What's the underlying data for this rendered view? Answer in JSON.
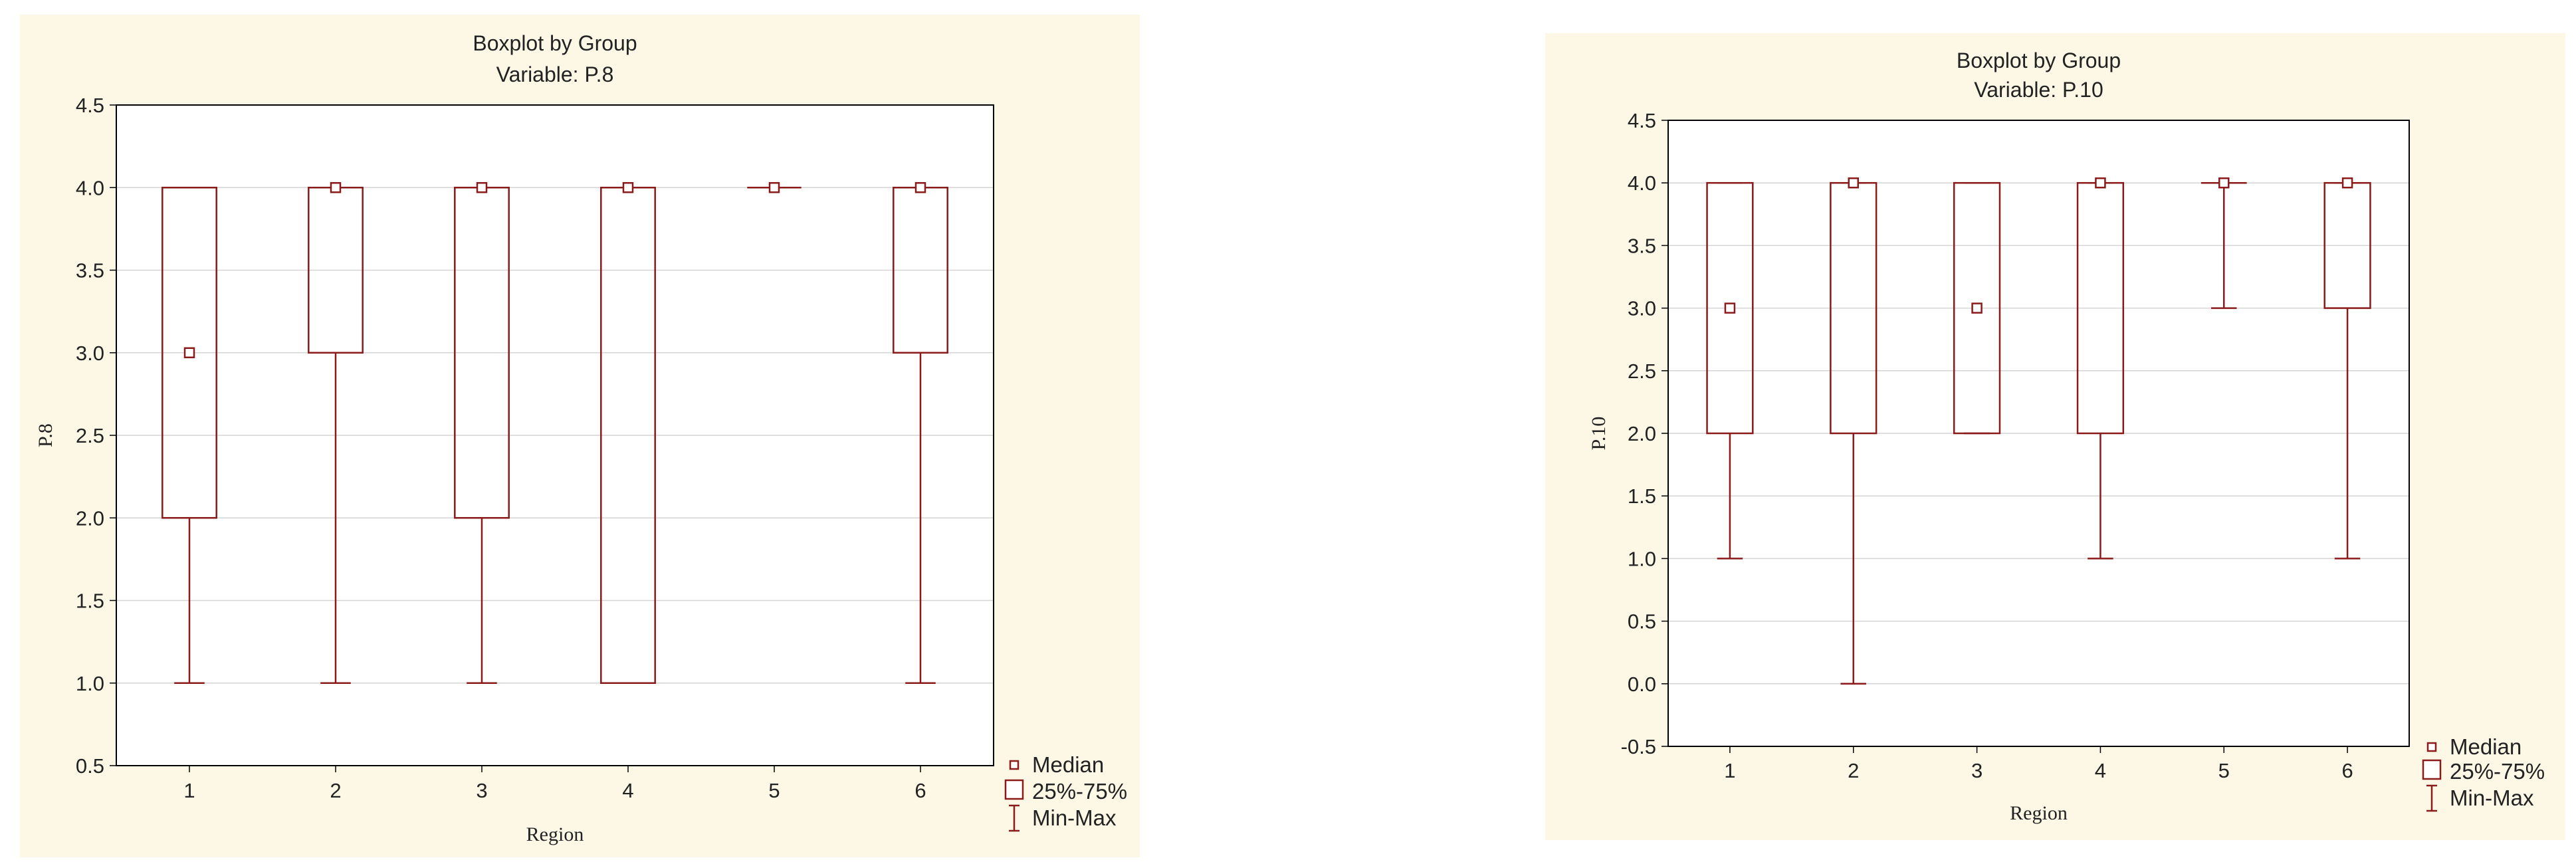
{
  "colors": {
    "box": "#8b1a1a",
    "panel_bg": "#fdf7e6",
    "plot_bg": "#ffffff",
    "grid": "#d4d4d4"
  },
  "chart_data": [
    {
      "type": "box",
      "title": "Boxplot by Group",
      "subtitle": "Variable: P.8",
      "xlabel": "Region",
      "ylabel": "P.8",
      "categories": [
        "1",
        "2",
        "3",
        "4",
        "5",
        "6"
      ],
      "ylim": [
        0.5,
        4.5
      ],
      "yticks": [
        "0.5",
        "1.0",
        "1.5",
        "2.0",
        "2.5",
        "3.0",
        "3.5",
        "4.0",
        "4.5"
      ],
      "grid": true,
      "legend_position": "bottom-right outside",
      "boxes": [
        {
          "category": "1",
          "min": 1.0,
          "q1": 2.0,
          "median": 3.0,
          "q3": 4.0,
          "max": 4.0
        },
        {
          "category": "2",
          "min": 1.0,
          "q1": 3.0,
          "median": 4.0,
          "q3": 4.0,
          "max": 4.0
        },
        {
          "category": "3",
          "min": 1.0,
          "q1": 2.0,
          "median": 4.0,
          "q3": 4.0,
          "max": 4.0
        },
        {
          "category": "4",
          "min": 1.0,
          "q1": 1.0,
          "median": 4.0,
          "q3": 4.0,
          "max": 4.0
        },
        {
          "category": "5",
          "min": 4.0,
          "q1": 4.0,
          "median": 4.0,
          "q3": 4.0,
          "max": 4.0
        },
        {
          "category": "6",
          "min": 1.0,
          "q1": 3.0,
          "median": 4.0,
          "q3": 4.0,
          "max": 4.0
        }
      ],
      "legend": [
        "Median",
        "25%-75%",
        "Min-Max"
      ]
    },
    {
      "type": "box",
      "title": "Boxplot by Group",
      "subtitle": "Variable: P.10",
      "xlabel": "Region",
      "ylabel": "P.10",
      "categories": [
        "1",
        "2",
        "3",
        "4",
        "5",
        "6"
      ],
      "ylim": [
        -0.5,
        4.5
      ],
      "yticks": [
        "-0.5",
        "0.0",
        "0.5",
        "1.0",
        "1.5",
        "2.0",
        "2.5",
        "3.0",
        "3.5",
        "4.0",
        "4.5"
      ],
      "grid": true,
      "legend_position": "bottom-right outside",
      "boxes": [
        {
          "category": "1",
          "min": 1.0,
          "q1": 2.0,
          "median": 3.0,
          "q3": 4.0,
          "max": 4.0
        },
        {
          "category": "2",
          "min": 0.0,
          "q1": 2.0,
          "median": 4.0,
          "q3": 4.0,
          "max": 4.0
        },
        {
          "category": "3",
          "min": 2.0,
          "q1": 2.0,
          "median": 3.0,
          "q3": 4.0,
          "max": 4.0
        },
        {
          "category": "4",
          "min": 1.0,
          "q1": 2.0,
          "median": 4.0,
          "q3": 4.0,
          "max": 4.0
        },
        {
          "category": "5",
          "min": 3.0,
          "q1": 4.0,
          "median": 4.0,
          "q3": 4.0,
          "max": 4.0
        },
        {
          "category": "6",
          "min": 1.0,
          "q1": 3.0,
          "median": 4.0,
          "q3": 4.0,
          "max": 4.0
        }
      ],
      "legend": [
        "Median",
        "25%-75%",
        "Min-Max"
      ]
    }
  ]
}
